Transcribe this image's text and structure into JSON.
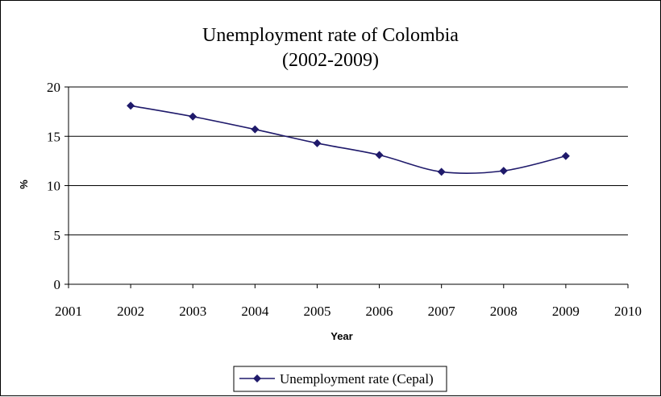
{
  "chart_data": {
    "type": "line",
    "title": "Unemployment rate of Colombia",
    "subtitle": "(2002-2009)",
    "xlabel": "Year",
    "ylabel": "%",
    "xlim": [
      2001,
      2010
    ],
    "ylim": [
      0,
      20
    ],
    "x_ticks": [
      2001,
      2002,
      2003,
      2004,
      2005,
      2006,
      2007,
      2008,
      2009,
      2010
    ],
    "y_ticks": [
      0,
      5,
      10,
      15,
      20
    ],
    "grid": "horizontal",
    "legend_position": "bottom",
    "series": [
      {
        "name": "Unemployment rate (Cepal)",
        "color": "#1f1a6b",
        "marker": "diamond",
        "smooth": true,
        "x": [
          2002,
          2003,
          2004,
          2005,
          2006,
          2007,
          2008,
          2009
        ],
        "y": [
          18.1,
          17.0,
          15.7,
          14.3,
          13.1,
          11.4,
          11.5,
          13.0
        ]
      }
    ]
  }
}
